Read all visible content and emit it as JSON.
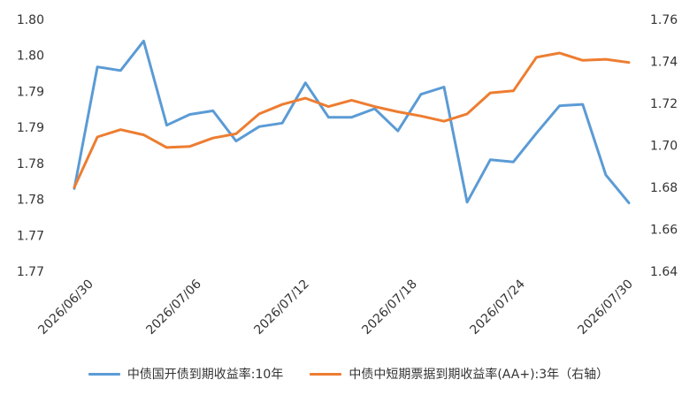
{
  "chart_data": {
    "type": "line",
    "x_tick_labels": [
      "2026/06/30",
      "2026/07/06",
      "2026/07/12",
      "2026/07/18",
      "2026/07/24",
      "2026/07/30"
    ],
    "left_axis": {
      "tick_labels": [
        "1.77",
        "1.77",
        "1.78",
        "1.78",
        "1.79",
        "1.79",
        "1.80",
        "1.80"
      ],
      "range": [
        1.765,
        1.8
      ]
    },
    "right_axis": {
      "tick_labels": [
        "1.64",
        "1.66",
        "1.68",
        "1.70",
        "1.72",
        "1.74",
        "1.76"
      ],
      "range": [
        1.64,
        1.76
      ]
    },
    "grid": false,
    "legend_position": "bottom",
    "series": [
      {
        "name": "中债国开债到期收益率:10年",
        "axis": "left",
        "color": "#5B9BD5",
        "values": [
          1.7765,
          1.7934,
          1.7929,
          1.797,
          1.7853,
          1.7868,
          1.7873,
          1.7831,
          1.7851,
          1.7856,
          1.7912,
          1.7864,
          1.7864,
          1.7876,
          1.7845,
          1.7896,
          1.7906,
          1.7746,
          1.7805,
          1.7802,
          1.7842,
          1.788,
          1.7882,
          1.7784,
          1.7745
        ]
      },
      {
        "name": "中债中短期票据到期收益率(AA+):3年（右轴）",
        "axis": "right",
        "color": "#ED7D31",
        "values": [
          1.68,
          1.704,
          1.7075,
          1.705,
          1.699,
          1.6995,
          1.7035,
          1.7055,
          1.715,
          1.7195,
          1.7225,
          1.7185,
          1.7215,
          1.7185,
          1.716,
          1.714,
          1.7115,
          1.715,
          1.725,
          1.726,
          1.742,
          1.744,
          1.7405,
          1.741,
          1.7395
        ]
      }
    ]
  }
}
